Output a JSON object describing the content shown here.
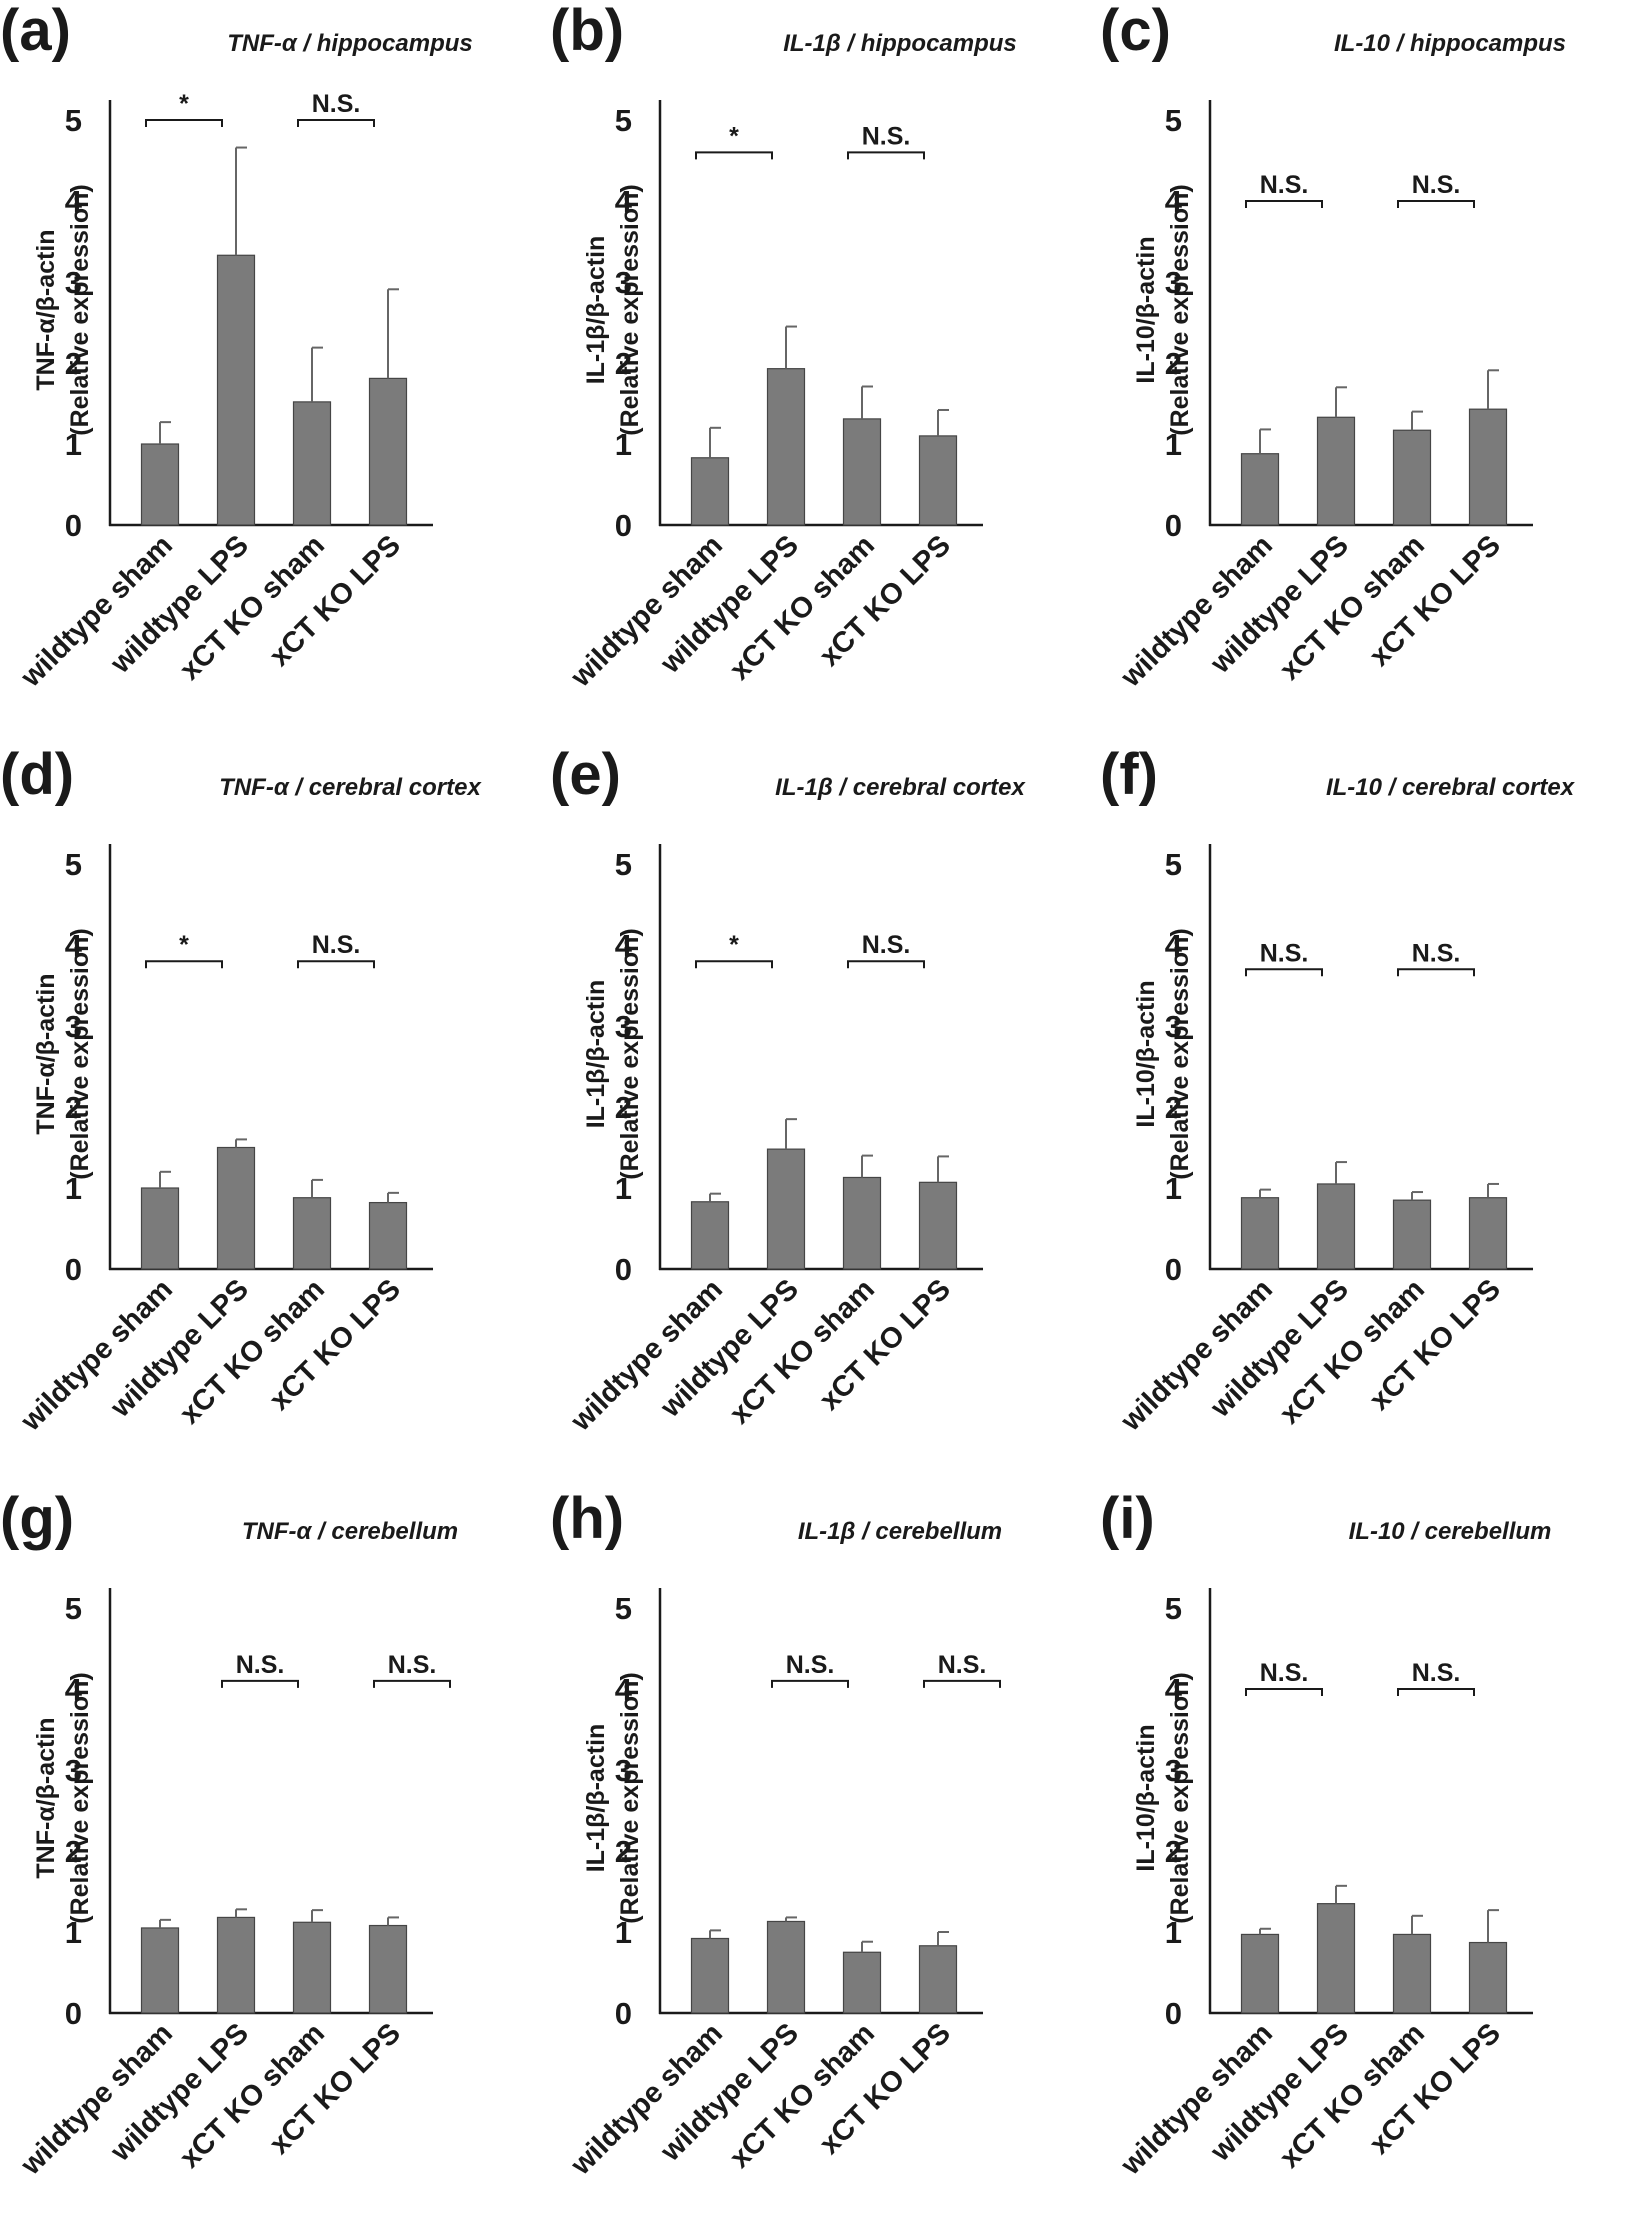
{
  "figure": {
    "categories": [
      "wildtype sham",
      "wildtype LPS",
      "xCT KO  sham",
      "xCT KO  LPS"
    ],
    "y_ticks": [
      "0",
      "1",
      "2",
      "3",
      "4",
      "5"
    ],
    "colors": {
      "bar": "#7b7b7b",
      "error_bar": "#666666",
      "axis": "#1a1a1a"
    }
  },
  "panels": [
    {
      "letter": "(a)",
      "title": "TNF-α / hippocampus",
      "ylabel_line1": "TNF-α/β-actin",
      "ylabel_line2": "(Relative expression)"
    },
    {
      "letter": "(b)",
      "title": "IL-1β / hippocampus",
      "ylabel_line1": "IL-1β/β-actin",
      "ylabel_line2": "(Relative expression)"
    },
    {
      "letter": "(c)",
      "title": "IL-10 / hippocampus",
      "ylabel_line1": "IL-10/β-actin",
      "ylabel_line2": "(Relative expression)"
    },
    {
      "letter": "(d)",
      "title": "TNF-α / cerebral cortex",
      "ylabel_line1": "TNF-α/β-actin",
      "ylabel_line2": "(Relative expression)"
    },
    {
      "letter": "(e)",
      "title": "IL-1β / cerebral cortex",
      "ylabel_line1": "IL-1β/β-actin",
      "ylabel_line2": "(Relative expression)"
    },
    {
      "letter": "(f)",
      "title": "IL-10 / cerebral cortex",
      "ylabel_line1": "IL-10/β-actin",
      "ylabel_line2": "(Relative expression)"
    },
    {
      "letter": "(g)",
      "title": "TNF-α / cerebellum",
      "ylabel_line1": "TNF-α/β-actin",
      "ylabel_line2": "(Relative expression)"
    },
    {
      "letter": "(h)",
      "title": "IL-1β / cerebellum",
      "ylabel_line1": "IL-1β/β-actin",
      "ylabel_line2": "(Relative expression)"
    },
    {
      "letter": "(i)",
      "title": "IL-10 / cerebellum",
      "ylabel_line1": "IL-10/β-actin",
      "ylabel_line2": "(Relative expression)"
    }
  ],
  "chart_data": [
    {
      "type": "bar",
      "panel": "(a)",
      "title": "TNF-α / hippocampus",
      "ylabel": "TNF-α/β-actin (Relative expression)",
      "ylim": [
        0,
        5.5
      ],
      "categories": [
        "wildtype sham",
        "wildtype LPS",
        "xCT KO  sham",
        "xCT KO  LPS"
      ],
      "values": [
        1.0,
        3.33,
        1.52,
        1.81
      ],
      "errors": [
        0.27,
        1.33,
        0.67,
        1.1
      ],
      "annotations": [
        {
          "pair": [
            0,
            1
          ],
          "label": "*",
          "y": 5.0
        },
        {
          "pair": [
            2,
            3
          ],
          "label": "N.S.",
          "y": 5.0
        }
      ]
    },
    {
      "type": "bar",
      "panel": "(b)",
      "title": "IL-1β / hippocampus",
      "ylabel": "IL-1β/β-actin (Relative expression)",
      "ylim": [
        0,
        5.5
      ],
      "categories": [
        "wildtype sham",
        "wildtype LPS",
        "xCT KO  sham",
        "xCT KO  LPS"
      ],
      "values": [
        0.83,
        1.93,
        1.31,
        1.1
      ],
      "errors": [
        0.37,
        0.52,
        0.4,
        0.32
      ],
      "annotations": [
        {
          "pair": [
            0,
            1
          ],
          "label": "*",
          "y": 4.6
        },
        {
          "pair": [
            2,
            3
          ],
          "label": "N.S.",
          "y": 4.6
        }
      ]
    },
    {
      "type": "bar",
      "panel": "(c)",
      "title": "IL-10 / hippocampus",
      "ylabel": "IL-10/β-actin (Relative expression)",
      "ylim": [
        0,
        5.5
      ],
      "categories": [
        "wildtype sham",
        "wildtype LPS",
        "xCT KO  sham",
        "xCT KO  LPS"
      ],
      "values": [
        0.88,
        1.33,
        1.17,
        1.43
      ],
      "errors": [
        0.3,
        0.37,
        0.23,
        0.48
      ],
      "annotations": [
        {
          "pair": [
            0,
            1
          ],
          "label": "N.S.",
          "y": 4.0
        },
        {
          "pair": [
            2,
            3
          ],
          "label": "N.S.",
          "y": 4.0
        }
      ]
    },
    {
      "type": "bar",
      "panel": "(d)",
      "title": "TNF-α / cerebral cortex",
      "ylabel": "TNF-α/β-actin (Relative expression)",
      "ylim": [
        0,
        5.5
      ],
      "categories": [
        "wildtype sham",
        "wildtype LPS",
        "xCT KO  sham",
        "xCT KO  LPS"
      ],
      "values": [
        1.0,
        1.5,
        0.88,
        0.82
      ],
      "errors": [
        0.2,
        0.1,
        0.22,
        0.12
      ],
      "annotations": [
        {
          "pair": [
            0,
            1
          ],
          "label": "*",
          "y": 3.8
        },
        {
          "pair": [
            2,
            3
          ],
          "label": "N.S.",
          "y": 3.8
        }
      ]
    },
    {
      "type": "bar",
      "panel": "(e)",
      "title": "IL-1β / cerebral cortex",
      "ylabel": "IL-1β/β-actin (Relative expression)",
      "ylim": [
        0,
        5.5
      ],
      "categories": [
        "wildtype sham",
        "wildtype LPS",
        "xCT KO  sham",
        "xCT KO  LPS"
      ],
      "values": [
        0.83,
        1.48,
        1.13,
        1.07
      ],
      "errors": [
        0.1,
        0.37,
        0.27,
        0.32
      ],
      "annotations": [
        {
          "pair": [
            0,
            1
          ],
          "label": "*",
          "y": 3.8
        },
        {
          "pair": [
            2,
            3
          ],
          "label": "N.S.",
          "y": 3.8
        }
      ]
    },
    {
      "type": "bar",
      "panel": "(f)",
      "title": "IL-10 / cerebral cortex",
      "ylabel": "IL-10/β-actin (Relative expression)",
      "ylim": [
        0,
        5.5
      ],
      "categories": [
        "wildtype sham",
        "wildtype LPS",
        "xCT KO  sham",
        "xCT KO  LPS"
      ],
      "values": [
        0.88,
        1.05,
        0.85,
        0.88
      ],
      "errors": [
        0.1,
        0.27,
        0.1,
        0.17
      ],
      "annotations": [
        {
          "pair": [
            0,
            1
          ],
          "label": "N.S.",
          "y": 3.7
        },
        {
          "pair": [
            2,
            3
          ],
          "label": "N.S.",
          "y": 3.7
        }
      ]
    },
    {
      "type": "bar",
      "panel": "(g)",
      "title": "TNF-α / cerebellum",
      "ylabel": "TNF-α/β-actin (Relative expression)",
      "ylim": [
        0,
        5.5
      ],
      "categories": [
        "wildtype sham",
        "wildtype LPS",
        "xCT KO  sham",
        "xCT KO  LPS"
      ],
      "values": [
        1.05,
        1.18,
        1.12,
        1.08
      ],
      "errors": [
        0.1,
        0.1,
        0.15,
        0.1
      ],
      "annotations": [
        {
          "pair": [
            1,
            2
          ],
          "label": "N.S.",
          "y": 4.1
        },
        {
          "pair": [
            3,
            4
          ],
          "label": "N.S.",
          "y": 4.1
        }
      ]
    },
    {
      "type": "bar",
      "panel": "(h)",
      "title": "IL-1β / cerebellum",
      "ylabel": "IL-1β/β-actin (Relative expression)",
      "ylim": [
        0,
        5.5
      ],
      "categories": [
        "wildtype sham",
        "wildtype LPS",
        "xCT KO  sham",
        "xCT KO  LPS"
      ],
      "values": [
        0.92,
        1.13,
        0.75,
        0.83
      ],
      "errors": [
        0.1,
        0.05,
        0.13,
        0.17
      ],
      "annotations": [
        {
          "pair": [
            1,
            2
          ],
          "label": "N.S.",
          "y": 4.1
        },
        {
          "pair": [
            3,
            4
          ],
          "label": "N.S.",
          "y": 4.1
        }
      ]
    },
    {
      "type": "bar",
      "panel": "(i)",
      "title": "IL-10 / cerebellum",
      "ylabel": "IL-10/β-actin (Relative expression)",
      "ylim": [
        0,
        5.5
      ],
      "categories": [
        "wildtype sham",
        "wildtype LPS",
        "xCT KO  sham",
        "xCT KO  LPS"
      ],
      "values": [
        0.97,
        1.35,
        0.97,
        0.87
      ],
      "errors": [
        0.07,
        0.22,
        0.23,
        0.4
      ],
      "annotations": [
        {
          "pair": [
            0,
            1
          ],
          "label": "N.S.",
          "y": 4.0
        },
        {
          "pair": [
            2,
            3
          ],
          "label": "N.S.",
          "y": 4.0
        }
      ]
    }
  ]
}
